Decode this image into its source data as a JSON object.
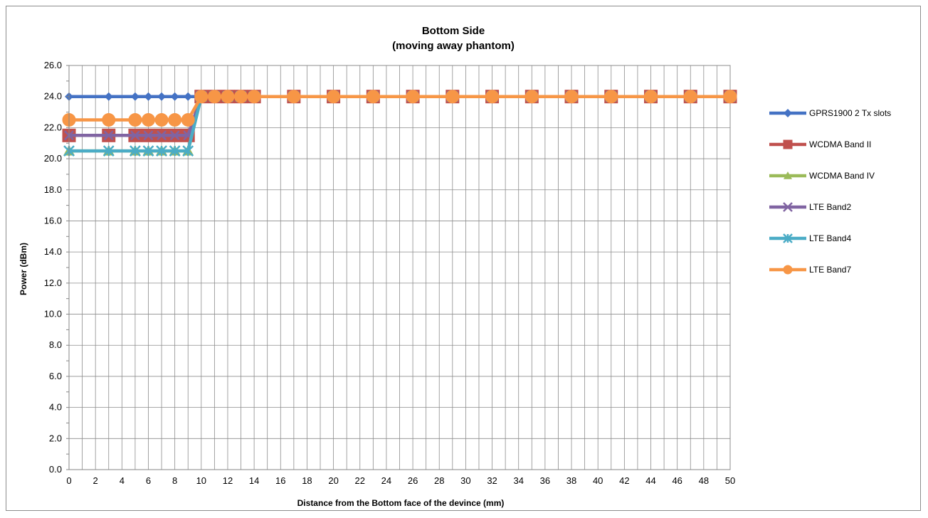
{
  "chart_data": {
    "type": "line",
    "title": "Bottom Side",
    "subtitle": "(moving away phantom)",
    "xlabel": "Distance from the Bottom face of the devince (mm)",
    "ylabel": "Power (dBm)",
    "xlim": [
      0,
      50
    ],
    "ylim": [
      0,
      26
    ],
    "grid": true,
    "legend_position": "right",
    "x_tick_labels": [
      "0",
      "2",
      "4",
      "6",
      "8",
      "10",
      "12",
      "14",
      "16",
      "18",
      "20",
      "22",
      "24",
      "26",
      "28",
      "30",
      "32",
      "34",
      "36",
      "38",
      "40",
      "42",
      "44",
      "46",
      "48",
      "50"
    ],
    "y_tick_labels": [
      "0.0",
      "2.0",
      "4.0",
      "6.0",
      "8.0",
      "10.0",
      "12.0",
      "14.0",
      "16.0",
      "18.0",
      "20.0",
      "22.0",
      "24.0",
      "26.0"
    ],
    "x": [
      0,
      3,
      5,
      6,
      7,
      8,
      9,
      10,
      11,
      12,
      13,
      14,
      17,
      20,
      23,
      26,
      29,
      32,
      35,
      38,
      41,
      44,
      47,
      50
    ],
    "series": [
      {
        "name": "GPRS1900 2 Tx slots",
        "color": "#4472c4",
        "marker": "diamond",
        "values": [
          24,
          24,
          24,
          24,
          24,
          24,
          24,
          24,
          24,
          24,
          24,
          24,
          24,
          24,
          24,
          24,
          24,
          24,
          24,
          24,
          24,
          24,
          24,
          24
        ]
      },
      {
        "name": "WCDMA Band II",
        "color": "#c0504d",
        "marker": "square",
        "values": [
          21.5,
          21.5,
          21.5,
          21.5,
          21.5,
          21.5,
          21.5,
          24,
          24,
          24,
          24,
          24,
          24,
          24,
          24,
          24,
          24,
          24,
          24,
          24,
          24,
          24,
          24,
          24
        ]
      },
      {
        "name": "WCDMA Band IV",
        "color": "#9bbb59",
        "marker": "triangle",
        "values": [
          20.5,
          20.5,
          20.5,
          20.5,
          20.5,
          20.5,
          20.5,
          24,
          24,
          24,
          24,
          24,
          24,
          24,
          24,
          24,
          24,
          24,
          24,
          24,
          24,
          24,
          24,
          24
        ]
      },
      {
        "name": "LTE Band2",
        "color": "#8064a2",
        "marker": "x",
        "values": [
          21.5,
          21.5,
          21.5,
          21.5,
          21.5,
          21.5,
          21.5,
          24,
          24,
          24,
          24,
          24,
          24,
          24,
          24,
          24,
          24,
          24,
          24,
          24,
          24,
          24,
          24,
          24
        ]
      },
      {
        "name": "LTE Band4",
        "color": "#4bacc6",
        "marker": "star",
        "values": [
          20.5,
          20.5,
          20.5,
          20.5,
          20.5,
          20.5,
          20.5,
          24,
          24,
          24,
          24,
          24,
          24,
          24,
          24,
          24,
          24,
          24,
          24,
          24,
          24,
          24,
          24,
          24
        ]
      },
      {
        "name": "LTE Band7",
        "color": "#f79646",
        "marker": "circle",
        "values": [
          22.5,
          22.5,
          22.5,
          22.5,
          22.5,
          22.5,
          22.5,
          24,
          24,
          24,
          24,
          24,
          24,
          24,
          24,
          24,
          24,
          24,
          24,
          24,
          24,
          24,
          24,
          24
        ]
      }
    ]
  }
}
